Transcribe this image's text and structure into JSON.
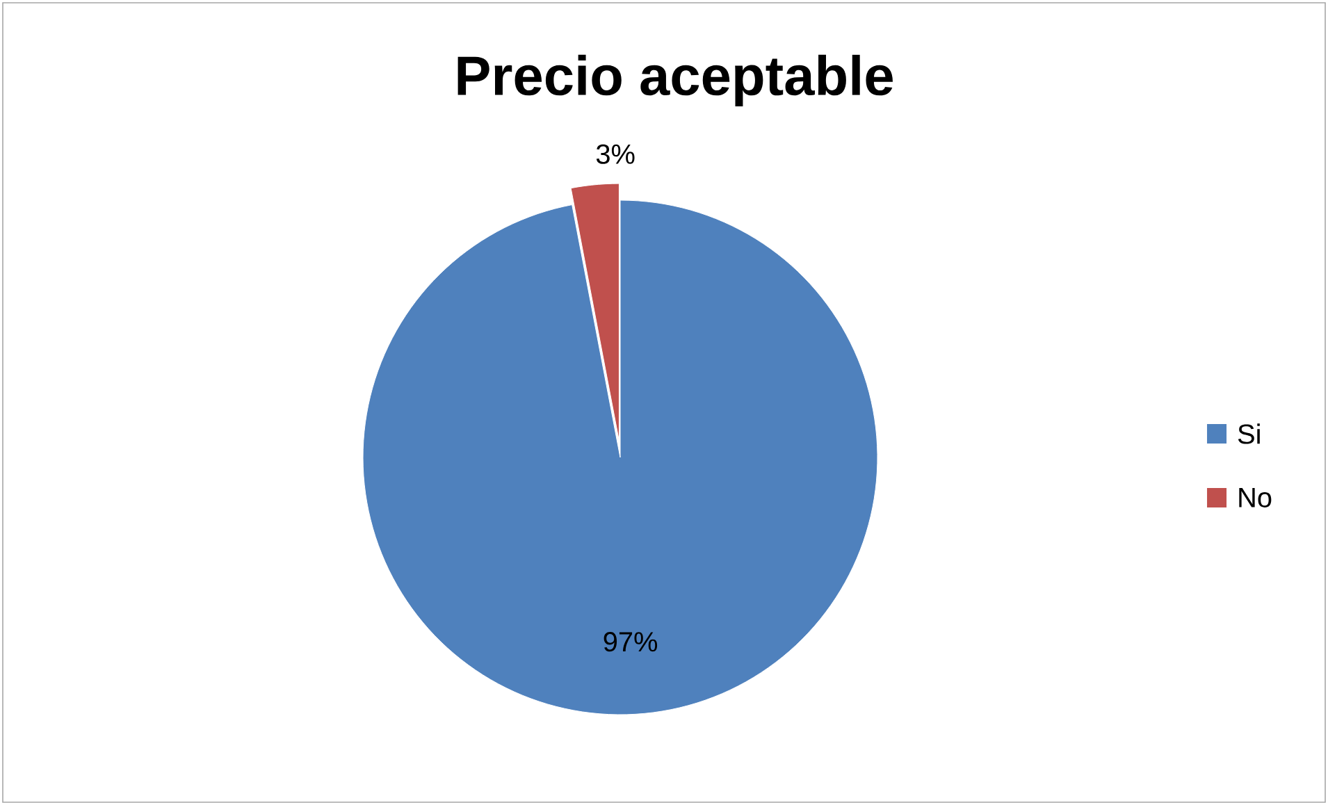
{
  "chart_data": {
    "type": "pie",
    "title": "Precio aceptable",
    "categories": [
      "Si",
      "No"
    ],
    "values": [
      97,
      3
    ],
    "colors": [
      "#4f81bd",
      "#c0504d"
    ],
    "value_labels": [
      "97%",
      "3%"
    ],
    "legend": "right"
  }
}
